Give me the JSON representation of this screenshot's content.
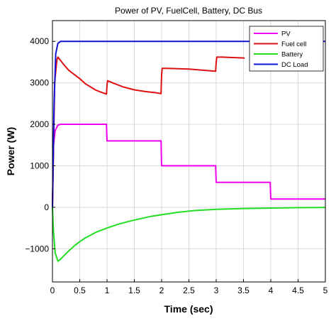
{
  "chart_data": {
    "type": "line",
    "title": "Power of PV, FuelCell, Battery, DC Bus",
    "xlabel": "Time (sec)",
    "ylabel": "Power (W)",
    "xlim": [
      0,
      5
    ],
    "ylim": [
      -1800,
      4500
    ],
    "xticks": [
      0,
      0.5,
      1,
      1.5,
      2,
      2.5,
      3,
      3.5,
      4,
      4.5,
      5
    ],
    "xtick_labels": [
      "0",
      "0.5",
      "1",
      "1.5",
      "2",
      "2.5",
      "3",
      "3.5",
      "4",
      "4.5",
      "5"
    ],
    "yticks": [
      -1000,
      0,
      1000,
      2000,
      3000,
      4000
    ],
    "ytick_labels": [
      "−1000",
      "0",
      "1000",
      "2000",
      "3000",
      "4000"
    ],
    "grid": true,
    "legend_position": "top-right",
    "series": [
      {
        "name": "PV",
        "color": "#ee00ee",
        "x": [
          0,
          0.02,
          0.05,
          0.1,
          0.15,
          0.2,
          0.5,
          0.99,
          1.0,
          1.99,
          2.0,
          2.99,
          3.0,
          3.99,
          4.0,
          5.0
        ],
        "y": [
          0,
          1500,
          1850,
          1980,
          2000,
          2000,
          2000,
          2000,
          1600,
          1600,
          1000,
          1000,
          600,
          600,
          200,
          200
        ]
      },
      {
        "name": "Fuel cell",
        "color": "#dd1111",
        "x": [
          0,
          0.04,
          0.08,
          0.1,
          0.2,
          0.3,
          0.4,
          0.5,
          0.6,
          0.7,
          0.8,
          0.9,
          0.99,
          1.0,
          1.01,
          1.1,
          1.3,
          1.5,
          1.7,
          1.9,
          1.99,
          2.0,
          2.01,
          2.1,
          2.3,
          2.5,
          2.7,
          2.9,
          2.99,
          3.0,
          3.01,
          3.1,
          3.3,
          3.5,
          3.52
        ],
        "y": [
          0,
          3000,
          3550,
          3620,
          3450,
          3300,
          3200,
          3100,
          2980,
          2900,
          2820,
          2770,
          2730,
          2950,
          3050,
          3000,
          2900,
          2830,
          2790,
          2760,
          2740,
          3200,
          3350,
          3350,
          3340,
          3330,
          3310,
          3290,
          3280,
          3500,
          3620,
          3620,
          3610,
          3600,
          3590
        ]
      },
      {
        "name": "Battery",
        "color": "#22dd22",
        "x": [
          0,
          0.02,
          0.05,
          0.1,
          0.15,
          0.2,
          0.3,
          0.4,
          0.5,
          0.6,
          0.8,
          1.0,
          1.2,
          1.4,
          1.6,
          1.8,
          2.0,
          2.3,
          2.6,
          3.0,
          3.5,
          4.0,
          4.5,
          5.0
        ],
        "y": [
          0,
          -600,
          -1100,
          -1300,
          -1250,
          -1180,
          -1050,
          -930,
          -830,
          -740,
          -600,
          -500,
          -410,
          -340,
          -280,
          -220,
          -180,
          -120,
          -80,
          -50,
          -30,
          -20,
          -10,
          -5
        ]
      },
      {
        "name": "DC Load",
        "color": "#1111dd",
        "x": [
          0,
          0.03,
          0.06,
          0.1,
          0.15,
          0.2,
          0.5,
          1.0,
          1.5,
          2.0,
          2.5,
          3.0,
          3.5,
          4.0,
          4.5,
          5.0
        ],
        "y": [
          0,
          2500,
          3700,
          3950,
          4000,
          4000,
          4000,
          4000,
          4000,
          4000,
          4000,
          4000,
          4000,
          4000,
          4000,
          4000
        ]
      }
    ]
  }
}
